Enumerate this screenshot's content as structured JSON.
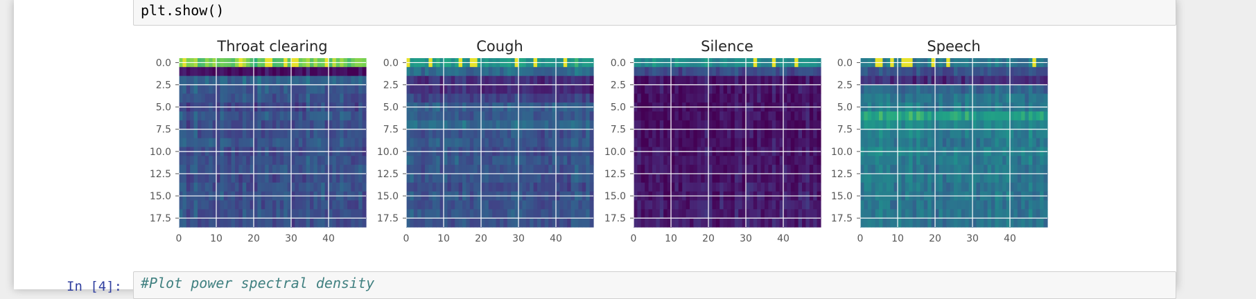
{
  "cells": {
    "prev_code": "plt.show()",
    "next_prompt": "In [4]:",
    "next_code": "#Plot power spectral density"
  },
  "chart_data": [
    {
      "type": "heatmap",
      "title": "Throat clearing",
      "x_ticks": [
        "0",
        "10",
        "20",
        "30",
        "40"
      ],
      "y_ticks": [
        "0.0",
        "2.5",
        "5.0",
        "7.5",
        "10.0",
        "12.5",
        "15.0",
        "17.5"
      ],
      "xlim": [
        0,
        49
      ],
      "ylim": [
        18.5,
        -0.5
      ],
      "grid": true,
      "colormap": "viridis",
      "row_levels": [
        0.88,
        0.05,
        0.42,
        0.36,
        0.33,
        0.28,
        0.35,
        0.3,
        0.33,
        0.36,
        0.3,
        0.32,
        0.34,
        0.3,
        0.32,
        0.33,
        0.31,
        0.33,
        0.3
      ]
    },
    {
      "type": "heatmap",
      "title": "Cough",
      "x_ticks": [
        "0",
        "10",
        "20",
        "30",
        "40"
      ],
      "y_ticks": [
        "0.0",
        "2.5",
        "5.0",
        "7.5",
        "10.0",
        "12.5",
        "15.0",
        "17.5"
      ],
      "xlim": [
        0,
        49
      ],
      "ylim": [
        18.5,
        -0.5
      ],
      "grid": true,
      "colormap": "viridis",
      "row_levels": [
        0.68,
        0.45,
        0.18,
        0.16,
        0.26,
        0.4,
        0.36,
        0.44,
        0.34,
        0.36,
        0.32,
        0.36,
        0.34,
        0.35,
        0.3,
        0.34,
        0.33,
        0.35,
        0.33
      ]
    },
    {
      "type": "heatmap",
      "title": "Silence",
      "x_ticks": [
        "0",
        "10",
        "20",
        "30",
        "40"
      ],
      "y_ticks": [
        "0.0",
        "2.5",
        "5.0",
        "7.5",
        "10.0",
        "12.5",
        "15.0",
        "17.5"
      ],
      "xlim": [
        0,
        49
      ],
      "ylim": [
        18.5,
        -0.5
      ],
      "grid": true,
      "colormap": "viridis",
      "row_levels": [
        0.62,
        0.3,
        0.08,
        0.07,
        0.06,
        0.05,
        0.06,
        0.05,
        0.07,
        0.06,
        0.08,
        0.07,
        0.09,
        0.08,
        0.1,
        0.09,
        0.11,
        0.1,
        0.12
      ]
    },
    {
      "type": "heatmap",
      "title": "Speech",
      "x_ticks": [
        "0",
        "10",
        "20",
        "30",
        "40"
      ],
      "y_ticks": [
        "0.0",
        "2.5",
        "5.0",
        "7.5",
        "10.0",
        "12.5",
        "15.0",
        "17.5"
      ],
      "xlim": [
        0,
        49
      ],
      "ylim": [
        18.5,
        -0.5
      ],
      "grid": true,
      "colormap": "viridis",
      "row_levels": [
        0.5,
        0.32,
        0.18,
        0.42,
        0.5,
        0.52,
        0.72,
        0.6,
        0.55,
        0.5,
        0.55,
        0.52,
        0.5,
        0.52,
        0.5,
        0.5,
        0.48,
        0.5,
        0.48
      ]
    }
  ]
}
